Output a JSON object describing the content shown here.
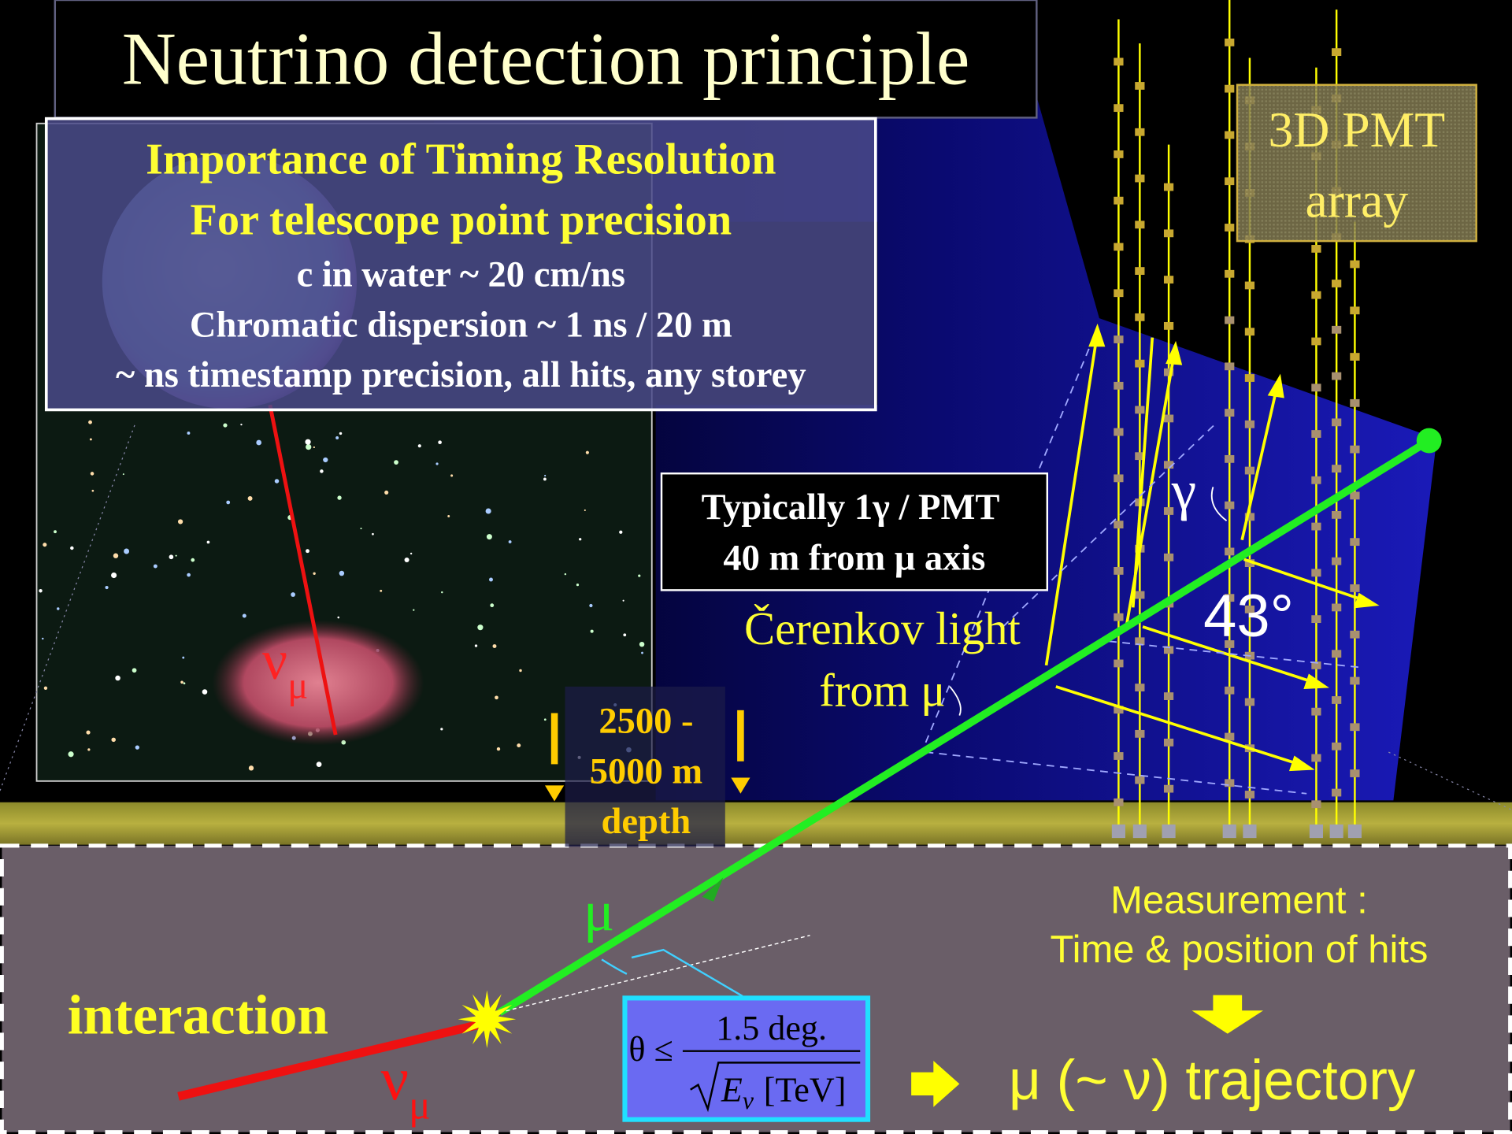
{
  "title": "Neutrino detection principle",
  "timing_box": {
    "lines": [
      "Importance of Timing Resolution",
      "For telescope point precision",
      "c in water ~ 20 cm/ns",
      "Chromatic dispersion ~ 1 ns / 20 m",
      "~ ns timestamp precision, all hits, any storey"
    ]
  },
  "pmt_label": {
    "lines": [
      "3D PMT",
      "array"
    ]
  },
  "photon_box": {
    "lines": [
      "Typically 1γ / PMT",
      "40 m from μ axis"
    ]
  },
  "cerenkov_label": {
    "lines": [
      "Čerenkov light",
      "from μ"
    ]
  },
  "gamma_label": "γ",
  "angle_label": "43°",
  "depth_label": {
    "lines": [
      "2500 -",
      "5000 m",
      "depth"
    ]
  },
  "neutrino_sky_label": {
    "symbol": "ν",
    "subscript": "μ"
  },
  "muon_label": "μ",
  "interaction_label": "interaction",
  "neutrino_bottom_label": {
    "symbol": "ν",
    "subscript": "μ"
  },
  "formula": {
    "lhs": "θ ≤",
    "numerator": "1.5 deg.",
    "energy": "E",
    "energy_subscript": "ν",
    "unit": "[TeV]"
  },
  "measurement": {
    "lines": [
      "Measurement :",
      "Time & position of hits"
    ]
  },
  "result": "μ (~ ν) trajectory"
}
